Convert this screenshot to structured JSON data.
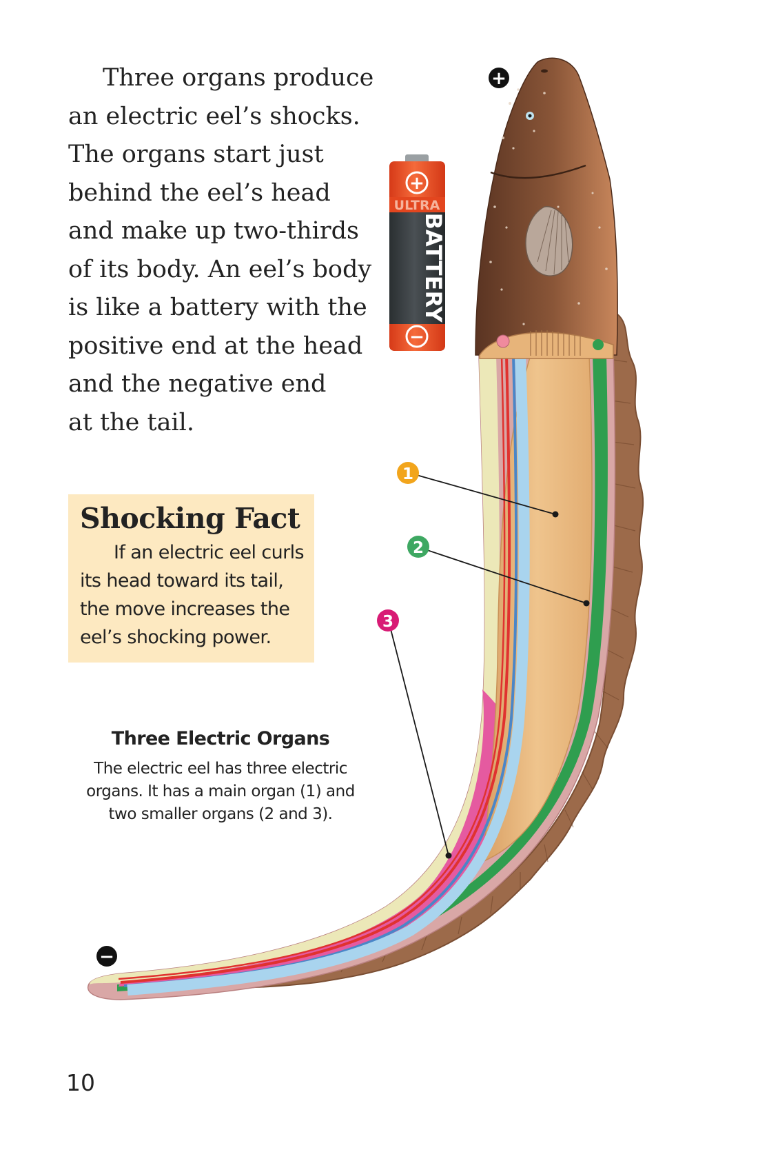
{
  "main_text": {
    "lines": [
      "Three organs produce",
      "an electric eel’s shocks.",
      "The organs start just",
      "behind the eel’s head",
      "and make up two-thirds",
      "of its body. An eel’s body",
      "is like a battery with the",
      "positive end at the head",
      "and the negative end",
      "at the tail."
    ]
  },
  "fact_box": {
    "title": "Shocking Fact",
    "lines": [
      "If an electric eel curls",
      "its head toward its tail,",
      "the move increases the",
      "eel’s shocking power."
    ]
  },
  "caption": {
    "title": "Three Electric Organs",
    "lines": [
      "The electric eel has three electric",
      "organs. It has a main organ (1) and",
      "two smaller organs (2 and 3)."
    ]
  },
  "battery": {
    "brand": "ULTRA",
    "label": "BATTERY",
    "positive_symbol": "+",
    "negative_symbol": "−"
  },
  "polarity": {
    "head_symbol": "+",
    "tail_symbol": "−"
  },
  "markers": [
    {
      "label": "1",
      "color": "#f2a51c"
    },
    {
      "label": "2",
      "color": "#3ea862"
    },
    {
      "label": "3",
      "color": "#d81b75"
    }
  ],
  "page_number": "10",
  "colors": {
    "fact_box_bg": "#fde9c1",
    "battery_orange": "#ef4b23",
    "battery_body": "#343a3d",
    "eel_skin": "#8a5a3c",
    "main_organ": "#e5b47b",
    "organ_2_green": "#2f9e4f",
    "organ_3_pink": "#e55aa0"
  }
}
